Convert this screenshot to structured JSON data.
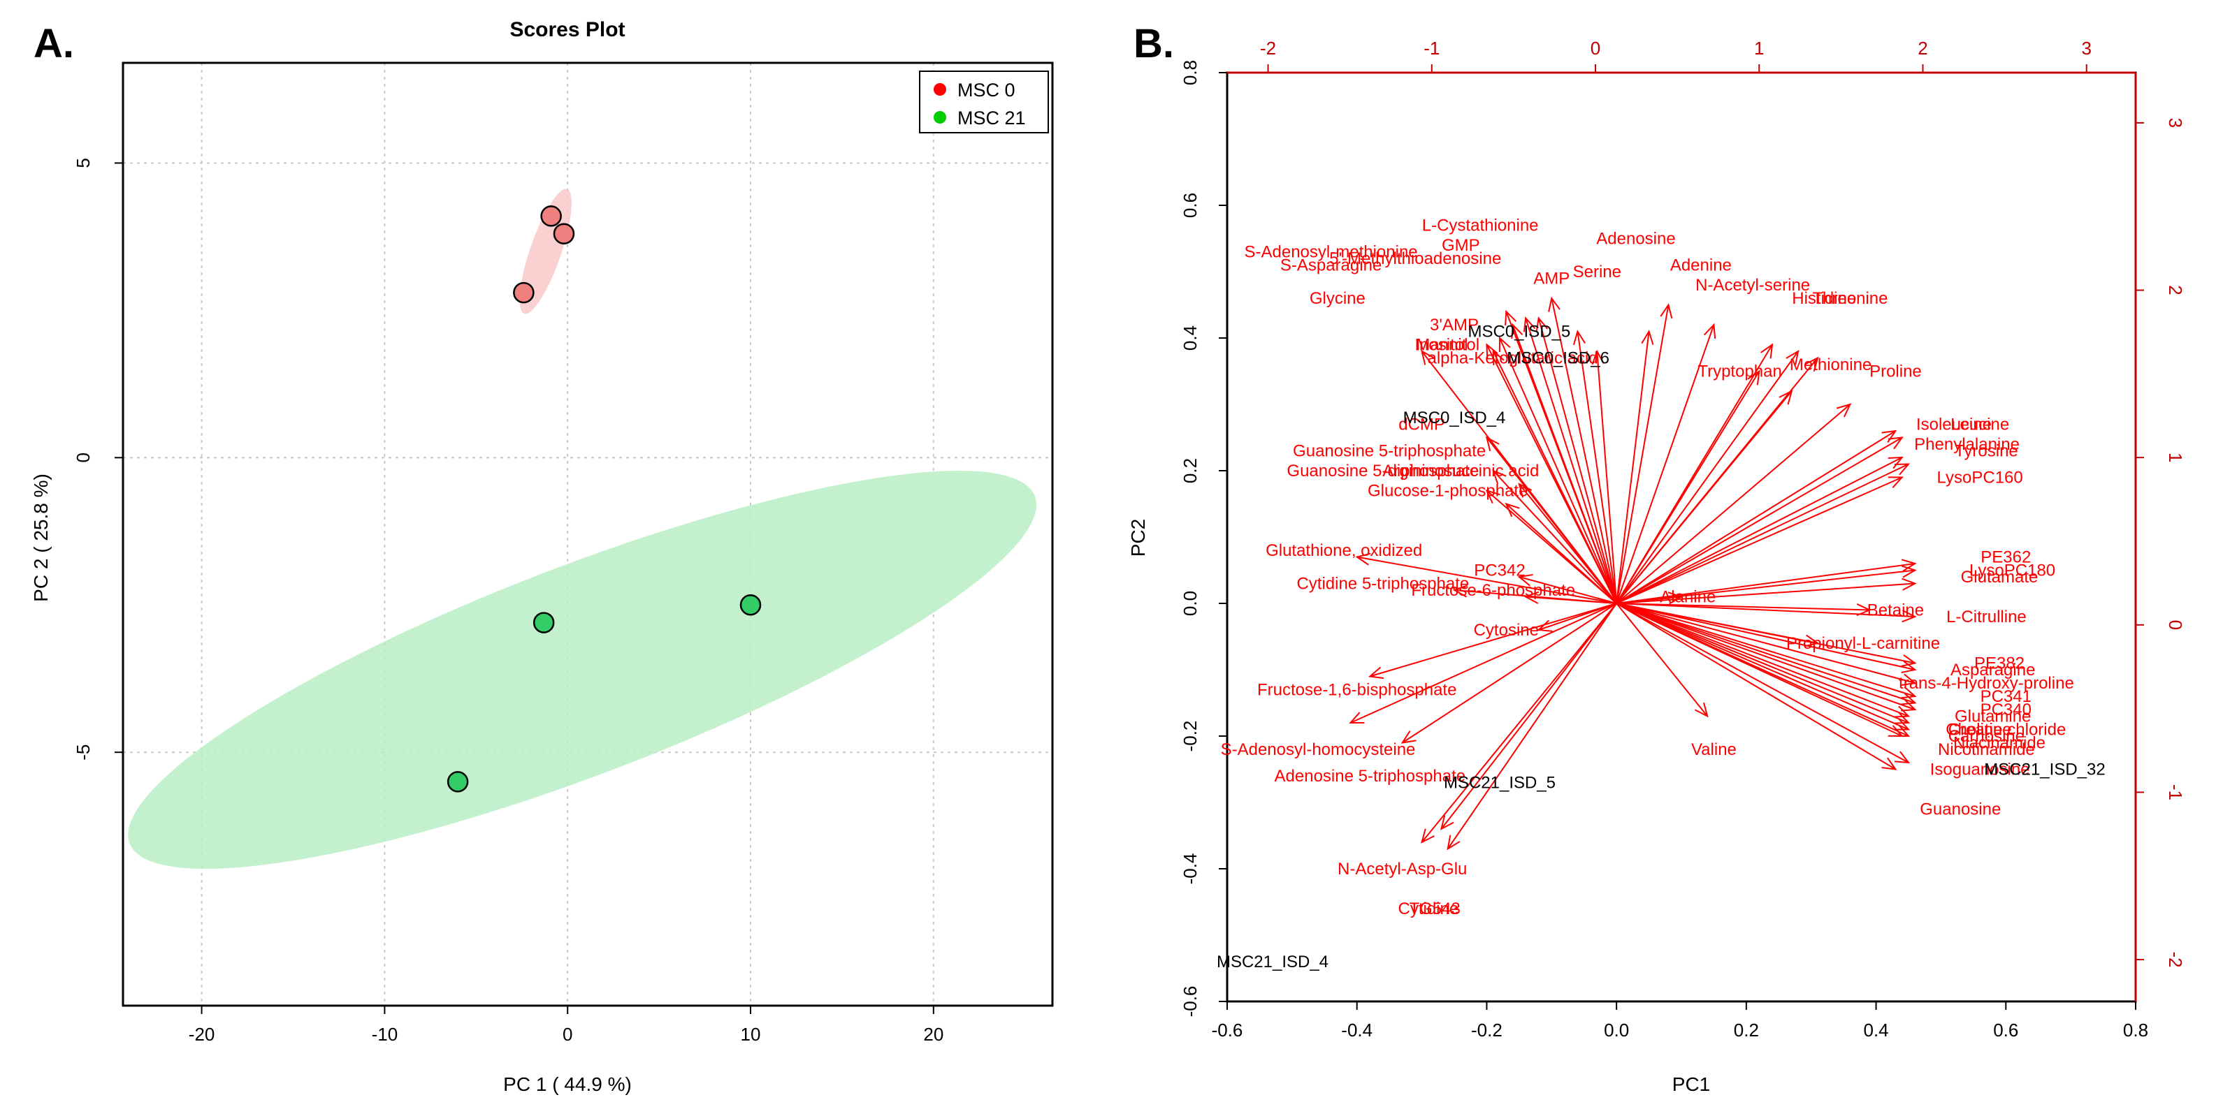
{
  "panel_labels": {
    "a": "A.",
    "b": "B."
  },
  "chart_data": [
    {
      "type": "scatter",
      "title": "Scores Plot",
      "xlabel": "PC 1 ( 44.9 %)",
      "ylabel": "PC 2 ( 25.8 %)",
      "xlim": [
        -24.3,
        26.5
      ],
      "ylim": [
        -9.3,
        6.7
      ],
      "xticks": [
        -20,
        -10,
        0,
        10,
        20
      ],
      "yticks": [
        -5,
        0,
        5
      ],
      "grid": true,
      "legend_position": "top-right",
      "series": [
        {
          "name": "MSC 0",
          "color": "#ff0000",
          "fill": "#f08080",
          "ellipse_fill": "#f9c8c8",
          "points": [
            {
              "x": -0.9,
              "y": 4.1
            },
            {
              "x": -0.2,
              "y": 3.8
            },
            {
              "x": -2.4,
              "y": 2.8
            }
          ],
          "ellipse": {
            "cx": -1.2,
            "cy": 3.5,
            "semi_major": 3.6,
            "semi_minor": 0.85,
            "angle_deg": 71
          }
        },
        {
          "name": "MSC 21",
          "color": "#00cc00",
          "fill": "#33cc66",
          "ellipse_fill": "#b8efc4",
          "points": [
            {
              "x": -1.3,
              "y": -2.8
            },
            {
              "x": 10.0,
              "y": -2.5
            },
            {
              "x": -6.0,
              "y": -5.5
            }
          ],
          "ellipse": {
            "cx": 0.8,
            "cy": -3.6,
            "semi_major": 26.5,
            "semi_minor": 5.7,
            "angle_deg": 21
          }
        }
      ]
    },
    {
      "type": "biplot",
      "xlabel": "PC1",
      "ylabel": "PC2",
      "xlim": [
        -0.6,
        0.8
      ],
      "ylim": [
        -0.6,
        0.8
      ],
      "xticks": [
        -0.6,
        -0.4,
        -0.2,
        0.0,
        0.2,
        0.4,
        0.6,
        0.8
      ],
      "yticks": [
        -0.6,
        -0.4,
        -0.2,
        0.0,
        0.2,
        0.4,
        0.6,
        0.8
      ],
      "xtick_labels": [
        "-0.6",
        "-0.4",
        "-0.2",
        "0.0",
        "0.2",
        "0.4",
        "0.6",
        "0.8"
      ],
      "ytick_labels": [
        "-0.6",
        "-0.4",
        "-0.2",
        "0.0",
        "0.2",
        "0.4",
        "0.6",
        "0.8"
      ],
      "top_axis": {
        "lim": [
          -2.25,
          3.3
        ],
        "ticks": [
          -2,
          -1,
          0,
          1,
          2,
          3
        ],
        "tick_labels": [
          "-2",
          "-1",
          "0",
          "1",
          "2",
          "3"
        ]
      },
      "right_axis": {
        "lim": [
          -2.25,
          3.3
        ],
        "ticks": [
          -2,
          -1,
          0,
          1,
          2,
          3
        ],
        "tick_labels": [
          "-2",
          "-1",
          "0",
          "1",
          "2",
          "3"
        ]
      },
      "arrow_color": "#ff0000",
      "sample_labels": [
        {
          "name": "MSC0_ISD_5",
          "x": -0.15,
          "y": 0.41
        },
        {
          "name": "MSC0_ISD_6",
          "x": -0.09,
          "y": 0.37
        },
        {
          "name": "MSC0_ISD_4",
          "x": -0.25,
          "y": 0.28
        },
        {
          "name": "MSC21_ISD_5",
          "x": -0.18,
          "y": -0.27
        },
        {
          "name": "MSC21_ISD_32",
          "x": 0.66,
          "y": -0.25
        },
        {
          "name": "MSC21_ISD_4",
          "x": -0.53,
          "y": -0.54
        }
      ],
      "loadings": [
        {
          "name": "L-Cystathionine",
          "x": -0.21,
          "y": 0.57,
          "ax": -0.1,
          "ay": 0.46
        },
        {
          "name": "Adenosine",
          "x": 0.03,
          "y": 0.55,
          "ax": 0.08,
          "ay": 0.45
        },
        {
          "name": "GMP",
          "x": -0.24,
          "y": 0.54,
          "ax": -0.12,
          "ay": 0.43
        },
        {
          "name": "S-Adenosyl-methionine",
          "x": -0.44,
          "y": 0.53,
          "ax": -0.17,
          "ay": 0.44
        },
        {
          "name": "S-Asparagine",
          "x": -0.44,
          "y": 0.51,
          "ax": -0.16,
          "ay": 0.42
        },
        {
          "name": "5'-Methylthioadenosine",
          "x": -0.31,
          "y": 0.52,
          "ax": -0.14,
          "ay": 0.43
        },
        {
          "name": "Serine",
          "x": -0.03,
          "y": 0.5,
          "ax": 0.05,
          "ay": 0.41
        },
        {
          "name": "Adenine",
          "x": 0.13,
          "y": 0.51,
          "ax": 0.15,
          "ay": 0.42
        },
        {
          "name": "AMP",
          "x": -0.1,
          "y": 0.49,
          "ax": -0.06,
          "ay": 0.41
        },
        {
          "name": "N-Acetyl-serine",
          "x": 0.21,
          "y": 0.48,
          "ax": 0.24,
          "ay": 0.39
        },
        {
          "name": "Histidine",
          "x": 0.32,
          "y": 0.46,
          "ax": 0.28,
          "ay": 0.38
        },
        {
          "name": "Threonine",
          "x": 0.36,
          "y": 0.46,
          "ax": 0.31,
          "ay": 0.37
        },
        {
          "name": "Glycine",
          "x": -0.43,
          "y": 0.46,
          "ax": -0.3,
          "ay": 0.38
        },
        {
          "name": "3'AMP",
          "x": -0.25,
          "y": 0.42,
          "ax": -0.18,
          "ay": 0.4
        },
        {
          "name": "Inositol",
          "x": -0.27,
          "y": 0.39,
          "ax": -0.2,
          "ay": 0.39
        },
        {
          "name": "Mannitol",
          "x": -0.26,
          "y": 0.39,
          "ax": -0.19,
          "ay": 0.38
        },
        {
          "name": "alpha-Ketoglutaric acid",
          "x": -0.16,
          "y": 0.37,
          "ax": -0.03,
          "ay": 0.38
        },
        {
          "name": "Tryptophan",
          "x": 0.19,
          "y": 0.35,
          "ax": 0.22,
          "ay": 0.35
        },
        {
          "name": "Methionine",
          "x": 0.33,
          "y": 0.36,
          "ax": 0.27,
          "ay": 0.32
        },
        {
          "name": "Proline",
          "x": 0.43,
          "y": 0.35,
          "ax": 0.36,
          "ay": 0.3
        },
        {
          "name": "Isoleucine",
          "x": 0.52,
          "y": 0.27,
          "ax": 0.43,
          "ay": 0.26
        },
        {
          "name": "Leucine",
          "x": 0.56,
          "y": 0.27,
          "ax": 0.44,
          "ay": 0.25
        },
        {
          "name": "dCMP",
          "x": -0.3,
          "y": 0.27,
          "ax": -0.2,
          "ay": 0.25
        },
        {
          "name": "Phenylalanine",
          "x": 0.54,
          "y": 0.24,
          "ax": 0.44,
          "ay": 0.22
        },
        {
          "name": "Tyrosine",
          "x": 0.57,
          "y": 0.23,
          "ax": 0.45,
          "ay": 0.21
        },
        {
          "name": "Guanosine 5-triphosphate",
          "x": -0.35,
          "y": 0.23,
          "ax": -0.19,
          "ay": 0.2
        },
        {
          "name": "Argininosuccinic acid",
          "x": -0.24,
          "y": 0.2,
          "ax": -0.15,
          "ay": 0.18
        },
        {
          "name": "Guanosine 5-diphosphate",
          "x": -0.36,
          "y": 0.2,
          "ax": -0.2,
          "ay": 0.17
        },
        {
          "name": "LysoPC160",
          "x": 0.56,
          "y": 0.19,
          "ax": 0.44,
          "ay": 0.19
        },
        {
          "name": "Glucose-1-phosphate",
          "x": -0.26,
          "y": 0.17,
          "ax": -0.17,
          "ay": 0.15
        },
        {
          "name": "Glutathione, oxidized",
          "x": -0.42,
          "y": 0.08,
          "ax": -0.4,
          "ay": 0.07
        },
        {
          "name": "PC342",
          "x": -0.18,
          "y": 0.05,
          "ax": -0.15,
          "ay": 0.04
        },
        {
          "name": "PE362",
          "x": 0.6,
          "y": 0.07,
          "ax": 0.46,
          "ay": 0.06
        },
        {
          "name": "LysoPC180",
          "x": 0.61,
          "y": 0.05,
          "ax": 0.46,
          "ay": 0.05
        },
        {
          "name": "Glutamate",
          "x": 0.59,
          "y": 0.04,
          "ax": 0.46,
          "ay": 0.03
        },
        {
          "name": "Cytidine 5-triphosphate",
          "x": -0.36,
          "y": 0.03,
          "ax": -0.25,
          "ay": 0.02
        },
        {
          "name": "Fructose-6-phosphate",
          "x": -0.19,
          "y": 0.02,
          "ax": -0.14,
          "ay": 0.01
        },
        {
          "name": "Alanine",
          "x": 0.11,
          "y": 0.01,
          "ax": 0.1,
          "ay": 0.01
        },
        {
          "name": "Betaine",
          "x": 0.43,
          "y": -0.01,
          "ax": 0.39,
          "ay": -0.01
        },
        {
          "name": "L-Citrulline",
          "x": 0.57,
          "y": -0.02,
          "ax": 0.46,
          "ay": -0.02
        },
        {
          "name": "Cytosine",
          "x": -0.17,
          "y": -0.04,
          "ax": -0.12,
          "ay": -0.04
        },
        {
          "name": "Propionyl-L-carnitine",
          "x": 0.38,
          "y": -0.06,
          "ax": 0.31,
          "ay": -0.06
        },
        {
          "name": "PE382",
          "x": 0.59,
          "y": -0.09,
          "ax": 0.46,
          "ay": -0.09
        },
        {
          "name": "Asparagine",
          "x": 0.58,
          "y": -0.1,
          "ax": 0.46,
          "ay": -0.1
        },
        {
          "name": "trans-4-Hydroxy-proline",
          "x": 0.57,
          "y": -0.12,
          "ax": 0.46,
          "ay": -0.12
        },
        {
          "name": "Fructose-1,6-bisphosphate",
          "x": -0.4,
          "y": -0.13,
          "ax": -0.38,
          "ay": -0.11
        },
        {
          "name": "PC341",
          "x": 0.6,
          "y": -0.14,
          "ax": 0.46,
          "ay": -0.14
        },
        {
          "name": "PC340",
          "x": 0.6,
          "y": -0.16,
          "ax": 0.46,
          "ay": -0.15
        },
        {
          "name": "Glutamine",
          "x": 0.58,
          "y": -0.17,
          "ax": 0.46,
          "ay": -0.16
        },
        {
          "name": "Creatine",
          "x": 0.56,
          "y": -0.19,
          "ax": 0.45,
          "ay": -0.17
        },
        {
          "name": "Choline chloride",
          "x": 0.6,
          "y": -0.19,
          "ax": 0.45,
          "ay": -0.18
        },
        {
          "name": "Carnosine",
          "x": 0.57,
          "y": -0.2,
          "ax": 0.45,
          "ay": -0.19
        },
        {
          "name": "Niacinamide",
          "x": 0.59,
          "y": -0.21,
          "ax": 0.45,
          "ay": -0.2
        },
        {
          "name": "Nicotinamide",
          "x": 0.57,
          "y": -0.22,
          "ax": 0.44,
          "ay": -0.2
        },
        {
          "name": "Valine",
          "x": 0.15,
          "y": -0.22,
          "ax": 0.14,
          "ay": -0.17
        },
        {
          "name": "S-Adenosyl-homocysteine",
          "x": -0.46,
          "y": -0.22,
          "ax": -0.41,
          "ay": -0.18
        },
        {
          "name": "Isoguanosine",
          "x": 0.56,
          "y": -0.25,
          "ax": 0.43,
          "ay": -0.25
        },
        {
          "name": "Adenosine 5-triphosphate",
          "x": -0.38,
          "y": -0.26,
          "ax": -0.33,
          "ay": -0.21
        },
        {
          "name": "Guanosine",
          "x": 0.53,
          "y": -0.31,
          "ax": 0.45,
          "ay": -0.24
        },
        {
          "name": "N-Acetyl-Asp-Glu",
          "x": -0.33,
          "y": -0.4,
          "ax": -0.3,
          "ay": -0.36
        },
        {
          "name": "TG543",
          "x": -0.28,
          "y": -0.46,
          "ax": -0.27,
          "ay": -0.34
        },
        {
          "name": "Cytidine",
          "x": -0.29,
          "y": -0.46,
          "ax": -0.26,
          "ay": -0.37
        }
      ]
    }
  ]
}
